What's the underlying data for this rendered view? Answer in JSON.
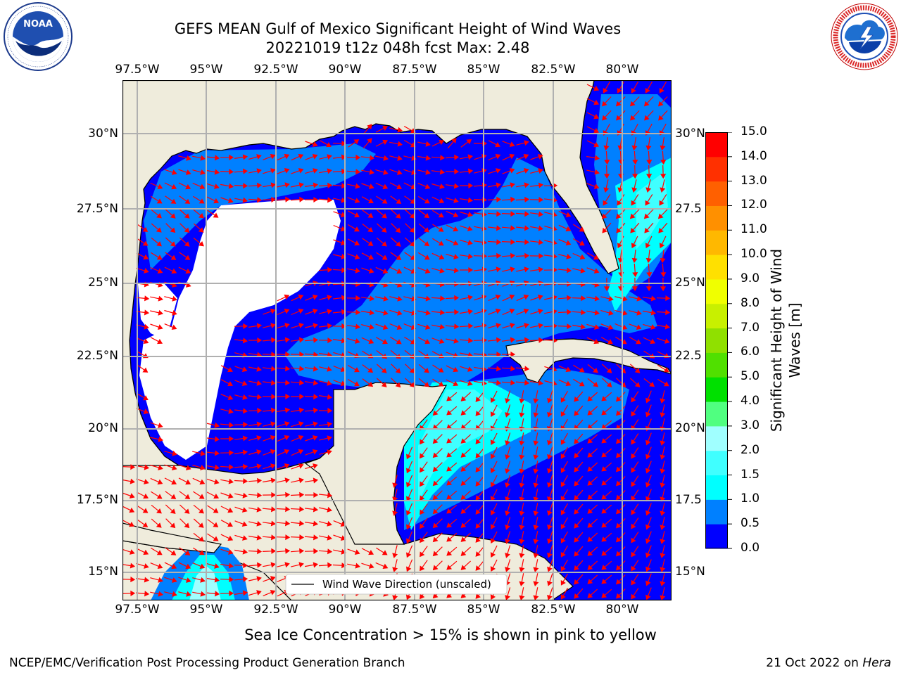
{
  "title": {
    "line1": "GEFS MEAN Gulf of Mexico Significant Height of Wind Waves",
    "line2": "20221019 t12z 048h fcst   Max: 2.48"
  },
  "logos": {
    "left": {
      "name": "NOAA",
      "ring_text": "NATIONAL OCEANIC AND ATMOSPHERIC ADMINISTRATION · U.S. DEPARTMENT OF COMMERCE"
    },
    "right": {
      "name": "NATIONAL WEATHER SERVICE"
    }
  },
  "map": {
    "lon_ticks": [
      "97.5°W",
      "95°W",
      "92.5°W",
      "90°W",
      "87.5°W",
      "85°W",
      "82.5°W",
      "80°W"
    ],
    "lat_ticks_left": [
      "30°N",
      "27.5°N",
      "25°N",
      "22.5°N",
      "20°N",
      "17.5°N",
      "15°N"
    ],
    "lat_ticks_right": [
      "30°N",
      "27.5",
      "25°N",
      "22.5",
      "20°N",
      "17.5",
      "15°N"
    ],
    "extent": {
      "lon": [
        -98,
        -78.2
      ],
      "lat": [
        14,
        31.6
      ]
    },
    "land_color": "#efecdc",
    "arrow_color": "#ff0000",
    "grid_color": "#b0b0b0",
    "legend_label": "Wind Wave Direction (unscaled)"
  },
  "colorbar": {
    "label": "Significant Height of Wind Waves [m]",
    "levels": [
      "0.0",
      "0.5",
      "1.0",
      "1.5",
      "2.0",
      "3.0",
      "4.0",
      "5.0",
      "6.0",
      "7.0",
      "8.0",
      "9.0",
      "10.0",
      "11.0",
      "12.0",
      "13.0",
      "14.0",
      "15.0"
    ],
    "colors": [
      "#0000ff",
      "#0080ff",
      "#00ffff",
      "#40ffff",
      "#a0ffff",
      "#50ff80",
      "#00e000",
      "#50e000",
      "#90e000",
      "#c8f000",
      "#f0ff00",
      "#ffe000",
      "#ffb800",
      "#ff9000",
      "#ff6000",
      "#ff3000",
      "#ff0000"
    ]
  },
  "note": "Sea Ice Concentration > 15% is shown in pink to yellow",
  "footer": {
    "left": "NCEP/EMC/Verification Post Processing Product Generation Branch",
    "right_date": "21 Oct 2022 on ",
    "right_machine": "Hera"
  }
}
